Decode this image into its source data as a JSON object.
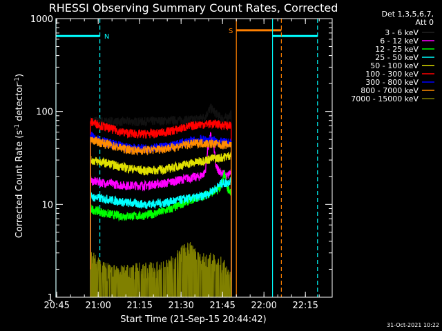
{
  "chart_data": {
    "type": "line",
    "title": "RHESSI Observing Summary Count Rates, Corrected",
    "xlabel": "Start Time (21-Sep-15 20:44:42)",
    "ylabel": "Corrected Count Rate (s⁻¹ detector⁻¹)",
    "ylabel_parts": {
      "main": "Corrected Count Rate (s",
      "sup1": "-1",
      "mid": " detector",
      "sup2": "-1",
      "end": ")"
    },
    "yscale": "log",
    "ylim": [
      1,
      1000
    ],
    "xlim_minutes": [
      0,
      100
    ],
    "x_ticks": [
      {
        "label": "20:45",
        "minute": 0.3
      },
      {
        "label": "21:00",
        "minute": 15.3
      },
      {
        "label": "21:15",
        "minute": 30.3
      },
      {
        "label": "21:30",
        "minute": 45.3
      },
      {
        "label": "21:45",
        "minute": 60.3
      },
      {
        "label": "22:00",
        "minute": 75.3
      },
      {
        "label": "22:15",
        "minute": 90.3
      }
    ],
    "y_ticks": [
      {
        "label": "1",
        "value": 1
      },
      {
        "label": "10",
        "value": 10
      },
      {
        "label": "100",
        "value": 100
      },
      {
        "label": "1000",
        "value": 1000
      }
    ],
    "legend_header": [
      "Det 1,3,5,6,7,",
      "Att 0"
    ],
    "series": [
      {
        "name": "3 - 6 keV",
        "color": "#000000",
        "points": [
          [
            12.5,
            80
          ],
          [
            20,
            78
          ],
          [
            30,
            78
          ],
          [
            40,
            80
          ],
          [
            50,
            82
          ],
          [
            54,
            88
          ],
          [
            56,
            110
          ],
          [
            58,
            95
          ],
          [
            60,
            85
          ],
          [
            62,
            85
          ],
          [
            63.5,
            95
          ]
        ]
      },
      {
        "name": "6 - 12 keV",
        "color": "#ff00ff",
        "points": [
          [
            12.5,
            18
          ],
          [
            18,
            17
          ],
          [
            25,
            16
          ],
          [
            32,
            16
          ],
          [
            40,
            17
          ],
          [
            47,
            19
          ],
          [
            52,
            20
          ],
          [
            54,
            22
          ],
          [
            55,
            40
          ],
          [
            56,
            55
          ],
          [
            57,
            45
          ],
          [
            58,
            25
          ],
          [
            60,
            22
          ],
          [
            62,
            20
          ],
          [
            63,
            22
          ]
        ]
      },
      {
        "name": "12 - 25 keV",
        "color": "#00ff00",
        "points": [
          [
            12.5,
            9
          ],
          [
            18,
            8
          ],
          [
            24,
            7.5
          ],
          [
            30,
            7.5
          ],
          [
            36,
            8
          ],
          [
            42,
            9
          ],
          [
            48,
            11
          ],
          [
            52,
            12
          ],
          [
            55,
            13
          ],
          [
            58,
            14
          ],
          [
            60,
            16
          ],
          [
            61,
            22
          ],
          [
            62,
            15
          ],
          [
            63,
            14
          ]
        ]
      },
      {
        "name": "25 - 50 keV",
        "color": "#00ffff",
        "points": [
          [
            12.5,
            12
          ],
          [
            18,
            11.5
          ],
          [
            25,
            10.5
          ],
          [
            32,
            10
          ],
          [
            40,
            10.5
          ],
          [
            47,
            11.5
          ],
          [
            52,
            12
          ],
          [
            55,
            13
          ],
          [
            58,
            15
          ],
          [
            60,
            17
          ],
          [
            62,
            17
          ],
          [
            63,
            18
          ]
        ]
      },
      {
        "name": "50 - 100 keV",
        "color": "#e0e000",
        "points": [
          [
            12.5,
            30
          ],
          [
            18,
            28
          ],
          [
            25,
            25
          ],
          [
            32,
            23
          ],
          [
            40,
            24
          ],
          [
            47,
            27
          ],
          [
            52,
            29
          ],
          [
            56,
            31
          ],
          [
            60,
            32
          ],
          [
            62,
            33
          ],
          [
            63,
            34
          ]
        ]
      },
      {
        "name": "100 - 300 keV",
        "color": "#ff0000",
        "points": [
          [
            12.5,
            78
          ],
          [
            18,
            68
          ],
          [
            24,
            60
          ],
          [
            30,
            57
          ],
          [
            36,
            58
          ],
          [
            42,
            62
          ],
          [
            47,
            68
          ],
          [
            52,
            73
          ],
          [
            57,
            74
          ],
          [
            60,
            72
          ],
          [
            63,
            70
          ]
        ]
      },
      {
        "name": "300 - 800 keV",
        "color": "#0000ff",
        "points": [
          [
            12.5,
            55
          ],
          [
            18,
            47
          ],
          [
            24,
            42
          ],
          [
            30,
            40
          ],
          [
            36,
            41
          ],
          [
            42,
            43
          ],
          [
            47,
            47
          ],
          [
            52,
            50
          ],
          [
            57,
            49
          ],
          [
            60,
            47
          ],
          [
            63,
            46
          ]
        ]
      },
      {
        "name": "800 - 7000 keV",
        "color": "#ff8c00",
        "points": [
          [
            12.5,
            50
          ],
          [
            18,
            45
          ],
          [
            24,
            40
          ],
          [
            30,
            38
          ],
          [
            36,
            39
          ],
          [
            42,
            41
          ],
          [
            47,
            44
          ],
          [
            52,
            46
          ],
          [
            57,
            45
          ],
          [
            60,
            44
          ],
          [
            63,
            44
          ]
        ]
      },
      {
        "name": "7000 - 15000 keV",
        "color": "#808000",
        "points": [
          [
            12.5,
            2
          ],
          [
            14,
            2
          ],
          [
            16,
            1.6
          ],
          [
            20,
            1.4
          ],
          [
            25,
            1.4
          ],
          [
            30,
            1.5
          ],
          [
            35,
            1.5
          ],
          [
            40,
            1.6
          ],
          [
            45,
            2.2
          ],
          [
            48,
            2.6
          ],
          [
            50,
            2.4
          ],
          [
            52,
            2
          ],
          [
            54,
            1.9
          ],
          [
            56,
            1.9
          ],
          [
            58,
            1.8
          ],
          [
            60,
            1.7
          ],
          [
            62,
            1.5
          ],
          [
            63,
            1.4
          ]
        ]
      }
    ],
    "flag_bars": [
      {
        "label": "N",
        "color": "#00ffff",
        "segments": [
          [
            0,
            15.9
          ],
          [
            78.4,
            94.7
          ]
        ],
        "value": 650
      },
      {
        "label": "S",
        "color": "#ff8000",
        "segments": [
          [
            65.3,
            81.6
          ]
        ],
        "value": 750
      }
    ],
    "vlines": [
      {
        "color": "#00ffff",
        "minute": 0,
        "style": "solid"
      },
      {
        "color": "#00ffff",
        "minute": 15.9,
        "style": "dashed"
      },
      {
        "color": "#ff8000",
        "minute": 65.3,
        "style": "solid"
      },
      {
        "color": "#00ffff",
        "minute": 78.4,
        "style": "solid"
      },
      {
        "color": "#ff8000",
        "minute": 81.6,
        "style": "dashed"
      },
      {
        "color": "#00ffff",
        "minute": 94.7,
        "style": "dashed"
      }
    ],
    "data_start_minute": 12.5,
    "data_end_minute": 63.5,
    "grid": false,
    "legend_position": "right"
  },
  "footer": {
    "date_stamp": "31-Oct-2021 10:22"
  }
}
